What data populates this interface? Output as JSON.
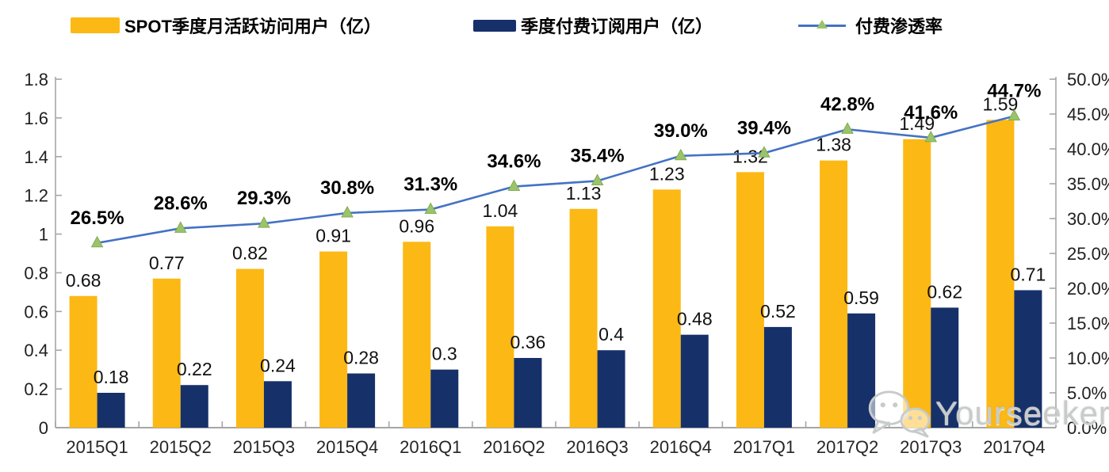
{
  "colors": {
    "mau-bar": "#FCB814",
    "subs-bar": "#16306A",
    "line": "#4472C4",
    "marker": "#9CC36B",
    "marker-edge": "#7FAE4F",
    "axis": "#A6A6A6",
    "watermark": "#C7CBCA"
  },
  "legend": {
    "items": [
      {
        "label": "SPOT季度月活跃访问用户（亿）",
        "type": "bar"
      },
      {
        "label": "季度付费订阅用户（亿）",
        "type": "bar"
      },
      {
        "label": "付费渗透率",
        "type": "line"
      }
    ]
  },
  "chart_data": {
    "type": "bar+line combo",
    "categories": [
      "2015Q1",
      "2015Q2",
      "2015Q3",
      "2015Q4",
      "2016Q1",
      "2016Q2",
      "2016Q3",
      "2016Q4",
      "2017Q1",
      "2017Q2",
      "2017Q3",
      "2017Q4"
    ],
    "series": [
      {
        "name": "SPOT季度月活跃访问用户（亿）",
        "type": "bar",
        "axis": "left",
        "values": [
          0.68,
          0.77,
          0.82,
          0.91,
          0.96,
          1.04,
          1.13,
          1.23,
          1.32,
          1.38,
          1.49,
          1.59
        ],
        "point_labels": [
          "0.68",
          "0.77",
          "0.82",
          "0.91",
          "0.96",
          "1.04",
          "1.13",
          "1.23",
          "1.32",
          "1.38",
          "1.49",
          "1.59"
        ]
      },
      {
        "name": "季度付费订阅用户（亿）",
        "type": "bar",
        "axis": "left",
        "values": [
          0.18,
          0.22,
          0.24,
          0.28,
          0.3,
          0.36,
          0.4,
          0.48,
          0.52,
          0.59,
          0.62,
          0.71
        ],
        "point_labels": [
          "0.18",
          "0.22",
          "0.24",
          "0.28",
          "0.3",
          "0.36",
          "0.4",
          "0.48",
          "0.52",
          "0.59",
          "0.62",
          "0.71"
        ]
      },
      {
        "name": "付费渗透率",
        "type": "line",
        "axis": "right",
        "values": [
          26.5,
          28.6,
          29.3,
          30.8,
          31.3,
          34.6,
          35.4,
          39.0,
          39.4,
          42.8,
          41.6,
          44.7
        ],
        "point_labels": [
          "26.5%",
          "28.6%",
          "29.3%",
          "30.8%",
          "31.3%",
          "34.6%",
          "35.4%",
          "39.0%",
          "39.4%",
          "42.8%",
          "41.6%",
          "44.7%"
        ]
      }
    ],
    "left_axis": {
      "min": 0,
      "max": 1.8,
      "step": 0.2,
      "ticks": [
        "0",
        "0.2",
        "0.4",
        "0.6",
        "0.8",
        "1",
        "1.2",
        "1.4",
        "1.6",
        "1.8"
      ]
    },
    "right_axis": {
      "min": 0,
      "max": 50,
      "step": 5,
      "ticks": [
        "0.0%",
        "5.0%",
        "10.0%",
        "15.0%",
        "20.0%",
        "25.0%",
        "30.0%",
        "35.0%",
        "40.0%",
        "45.0%",
        "50.0%"
      ]
    },
    "grid": false,
    "legend_position": "top",
    "title": ""
  },
  "watermark": {
    "text": "Yourseeker",
    "icon": "wechat-icon"
  }
}
